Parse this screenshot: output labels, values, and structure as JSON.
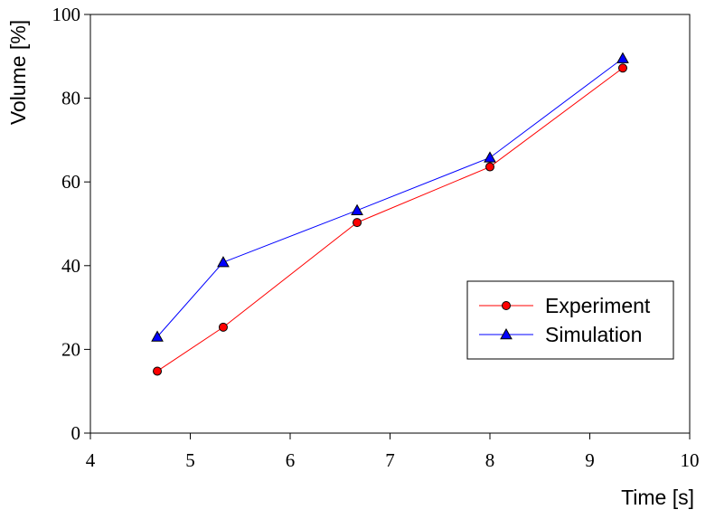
{
  "chart_data": {
    "type": "line",
    "xlabel": "Time [s]",
    "ylabel": "Volume [%]",
    "xlim": [
      4,
      10
    ],
    "ylim": [
      0,
      100
    ],
    "xticks": [
      4,
      5,
      6,
      7,
      8,
      9,
      10
    ],
    "yticks": [
      0,
      20,
      40,
      60,
      80,
      100
    ],
    "grid": false,
    "legend_position": "bottom-right",
    "series": [
      {
        "name": "Experiment",
        "color": "#ff0000",
        "marker": "circle",
        "x": [
          4.67,
          5.33,
          6.67,
          8.0,
          9.33
        ],
        "y": [
          14.8,
          25.3,
          50.3,
          63.6,
          87.2
        ]
      },
      {
        "name": "Simulation",
        "color": "#0000ff",
        "marker": "triangle",
        "x": [
          4.67,
          5.33,
          6.67,
          8.0,
          9.33
        ],
        "y": [
          23.0,
          40.8,
          53.2,
          65.8,
          89.5
        ]
      }
    ]
  }
}
